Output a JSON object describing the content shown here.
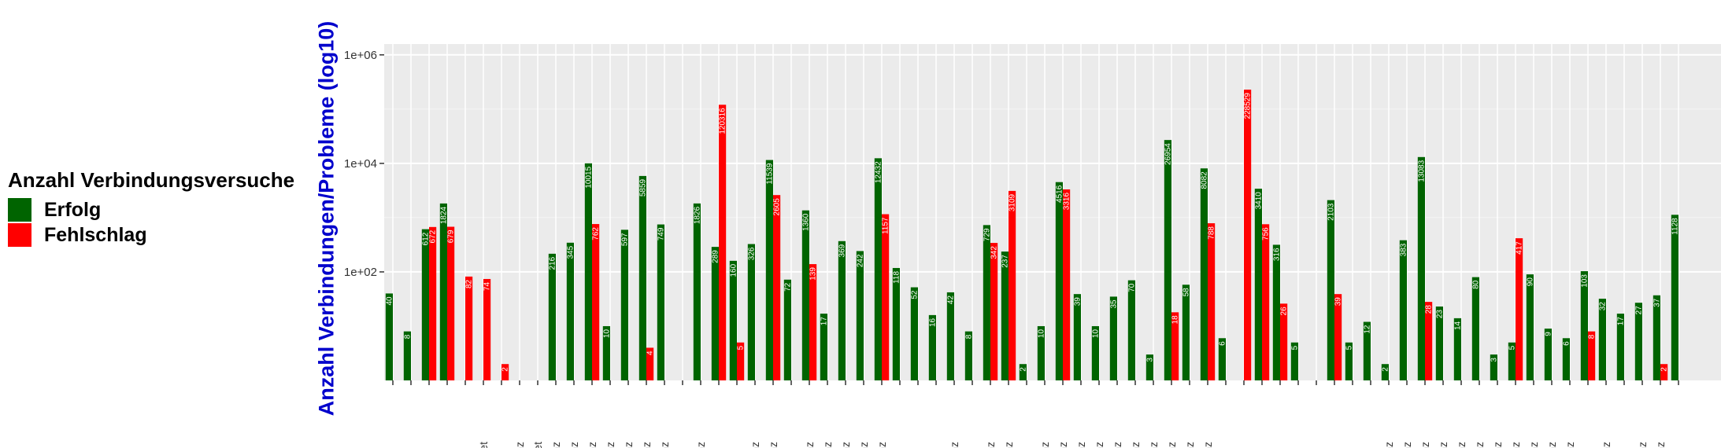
{
  "chart_data": {
    "type": "bar",
    "title": "",
    "xlabel": "",
    "ylabel": "Anzahl Verbindungen/Probleme (log10)",
    "yscale": "log10",
    "ylim": [
      1,
      1000000
    ],
    "yticks": [
      100,
      10000,
      1000000
    ],
    "ytick_labels": [
      "1e+02",
      "1e+04",
      "1e+06"
    ],
    "grid": true,
    "legend_position": "left",
    "legend_title": "Anzahl Verbindungsversuche",
    "series": [
      {
        "name": "Erfolg",
        "color": "#006400",
        "values": [
          40,
          8,
          612,
          1824,
          null,
          null,
          null,
          null,
          null,
          216,
          345,
          10015,
          10,
          597,
          5859,
          749,
          null,
          1826,
          289,
          160,
          326,
          11539,
          72,
          1360,
          17,
          369,
          242,
          12432,
          118,
          52,
          16,
          42,
          8,
          729,
          237,
          2,
          10,
          4516,
          39,
          10,
          35,
          70,
          3,
          26954,
          58,
          8082,
          6,
          null,
          3410,
          316,
          5,
          null,
          2103,
          5,
          12,
          2,
          383,
          13083,
          23,
          14,
          80,
          3,
          5,
          90,
          9,
          6,
          103,
          32,
          17,
          27,
          37,
          1128
        ]
      },
      {
        "name": "Fehlschlag",
        "color": "#ff0000",
        "values": [
          null,
          null,
          672,
          679,
          82,
          74,
          2,
          null,
          null,
          null,
          null,
          762,
          null,
          null,
          4,
          null,
          null,
          null,
          120316,
          5,
          null,
          2605,
          null,
          139,
          null,
          null,
          null,
          1157,
          null,
          null,
          null,
          null,
          null,
          342,
          3109,
          null,
          null,
          3316,
          null,
          null,
          null,
          null,
          null,
          18,
          null,
          788,
          null,
          228529,
          756,
          26,
          null,
          null,
          39,
          null,
          null,
          null,
          null,
          28,
          null,
          null,
          null,
          null,
          417,
          null,
          null,
          null,
          8,
          null,
          null,
          null,
          2,
          null
        ]
      }
    ],
    "x_tick_labels": [
      "",
      "",
      "",
      "",
      "",
      "n.net",
      "",
      "anz",
      "n.net",
      "anz",
      "anz",
      "anz",
      "anz",
      "anz",
      "anz",
      "anz",
      "",
      "anz",
      "",
      "",
      "anz",
      "anz",
      "",
      "anz",
      "anz",
      "anz",
      "anz",
      "anz",
      "",
      "",
      "",
      "anz",
      "",
      "anz",
      "anz",
      "",
      "anz",
      "anz",
      "anz",
      "anz",
      "anz",
      "anz",
      "anz",
      "anz",
      "anz",
      "anz",
      "",
      "",
      "",
      "",
      "",
      "",
      "",
      "",
      "",
      "anz",
      "anz",
      "anz",
      "anz",
      "anz",
      "anz",
      "anz",
      "anz",
      "anz",
      "anz",
      "anz",
      "",
      "anz",
      "",
      "anz",
      "anz",
      ""
    ]
  }
}
